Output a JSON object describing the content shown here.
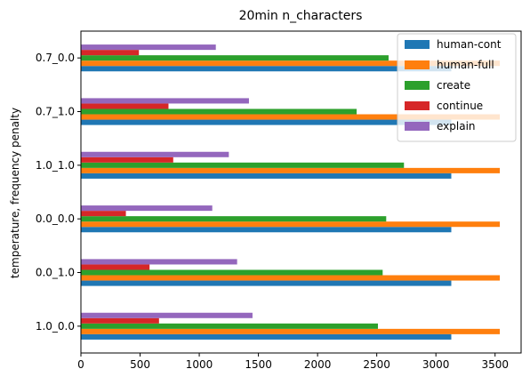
{
  "chart_data": {
    "type": "bar",
    "orientation": "horizontal",
    "title": "20min n_characters",
    "xlabel": "",
    "ylabel": "temperature, frequency penalty",
    "categories": [
      "1.0_0.0",
      "0.0_1.0",
      "0.0_0.0",
      "1.0_1.0",
      "0.7_1.0",
      "0.7_0.0"
    ],
    "xlim": [
      0,
      3720
    ],
    "xticks": [
      0,
      500,
      1000,
      1500,
      2000,
      2500,
      3000,
      3500
    ],
    "grid": false,
    "legend_position": "top-right",
    "series": [
      {
        "name": "human-cont",
        "color": "#1f77b4",
        "values": [
          3130,
          3130,
          3130,
          3130,
          3130,
          3130
        ]
      },
      {
        "name": "human-full",
        "color": "#ff7f0e",
        "values": [
          3540,
          3540,
          3540,
          3540,
          3540,
          3540
        ]
      },
      {
        "name": "create",
        "color": "#2ca02c",
        "values": [
          2510,
          2550,
          2580,
          2730,
          2330,
          2600
        ]
      },
      {
        "name": "continue",
        "color": "#d62728",
        "values": [
          660,
          580,
          380,
          780,
          740,
          490
        ]
      },
      {
        "name": "explain",
        "color": "#9467bd",
        "values": [
          1450,
          1320,
          1110,
          1250,
          1420,
          1140
        ]
      }
    ]
  }
}
